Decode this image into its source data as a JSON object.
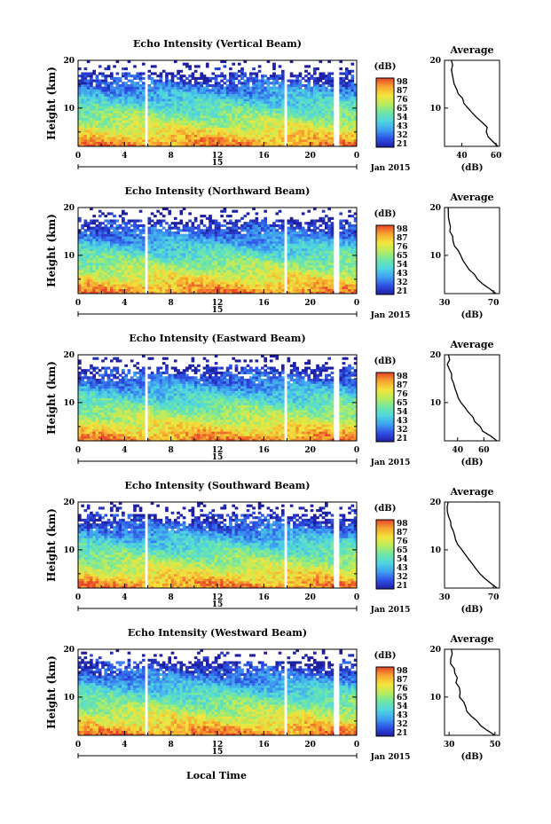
{
  "xlabel": "Local Time",
  "colorbar": {
    "unit": "(dB)",
    "ticks": [
      "98",
      "87",
      "76",
      "65",
      "54",
      "43",
      "32",
      "21"
    ],
    "colors": [
      "#1e1fa0",
      "#2f50e6",
      "#3fa0f0",
      "#4fd6e0",
      "#6ee6a6",
      "#b8ec5e",
      "#f4e43c",
      "#f6a630",
      "#e8442a"
    ]
  },
  "panels": [
    {
      "title": "Echo Intensity (Vertical Beam)",
      "ylabel": "Height (km)",
      "yticks": [
        "20",
        "10"
      ],
      "xticks": [
        "0",
        "4",
        "8",
        "12",
        "16",
        "20",
        "0"
      ],
      "date_day": "15",
      "date_label": "Jan 2015",
      "avg_title": "Average",
      "avg_xticks": [
        "40",
        "60"
      ],
      "avg_xlabel": "(dB)",
      "cb_ticks": [
        "98",
        "87",
        "76",
        "65",
        "54",
        "43",
        "32",
        "21"
      ]
    },
    {
      "title": "Echo Intensity (Northward Beam)",
      "ylabel": "Height (km)",
      "yticks": [
        "20",
        "10"
      ],
      "xticks": [
        "0",
        "4",
        "8",
        "12",
        "16",
        "20",
        "0"
      ],
      "date_day": "15",
      "date_label": "Jan 2015",
      "avg_title": "Average",
      "avg_xticks": [
        "30",
        "70"
      ],
      "avg_xlabel": "(dB)",
      "cb_ticks": [
        "98",
        "87",
        "76",
        "65",
        "54",
        "43",
        "32",
        "21"
      ]
    },
    {
      "title": "Echo Intensity (Eastward Beam)",
      "ylabel": "Height (km)",
      "yticks": [
        "20",
        "10"
      ],
      "xticks": [
        "0",
        "4",
        "8",
        "12",
        "16",
        "20",
        "0"
      ],
      "date_day": "15",
      "date_label": "Jan 2015",
      "avg_title": "Average",
      "avg_xticks": [
        "40",
        "60"
      ],
      "avg_xlabel": "(dB)",
      "cb_ticks": [
        "98",
        "87",
        "76",
        "65",
        "54",
        "43",
        "32",
        "21"
      ]
    },
    {
      "title": "Echo Intensity (Southward Beam)",
      "ylabel": "Height (km)",
      "yticks": [
        "20",
        "10"
      ],
      "xticks": [
        "0",
        "4",
        "8",
        "12",
        "16",
        "20",
        "0"
      ],
      "date_day": "15",
      "date_label": "Jan 2015",
      "avg_title": "Average",
      "avg_xticks": [
        "30",
        "70"
      ],
      "avg_xlabel": "(dB)",
      "cb_ticks": [
        "98",
        "87",
        "76",
        "65",
        "54",
        "43",
        "32",
        "21"
      ]
    },
    {
      "title": "Echo Intensity (Westward Beam)",
      "ylabel": "Height (km)",
      "yticks": [
        "20",
        "10"
      ],
      "xticks": [
        "0",
        "4",
        "8",
        "12",
        "16",
        "20",
        "0"
      ],
      "date_day": "15",
      "date_label": "Jan 2015",
      "avg_title": "Average",
      "avg_xticks": [
        "30",
        "50"
      ],
      "avg_xlabel": "(dB)",
      "cb_ticks": [
        "98",
        "87",
        "76",
        "65",
        "54",
        "43",
        "32",
        "21"
      ]
    }
  ],
  "chart_data": [
    {
      "type": "heatmap",
      "title": "Echo Intensity (Vertical Beam)",
      "xlabel": "Local Time",
      "ylabel": "Height (km)",
      "xlim": [
        0,
        24
      ],
      "ylim": [
        2,
        20
      ],
      "colorbar": {
        "label": "(dB)",
        "range": [
          21,
          98
        ]
      },
      "data_gaps_hours": [
        [
          5.7,
          5.9
        ],
        [
          17.7,
          17.9
        ],
        [
          21.9,
          22.6
        ]
      ],
      "profile": {
        "title": "Average",
        "xlabel": "(dB)",
        "xlim": [
          30,
          62
        ],
        "height_km": [
          2,
          3,
          4,
          5,
          6,
          7,
          8,
          9,
          10,
          11,
          12,
          13,
          14,
          15,
          16,
          17,
          18,
          19,
          20
        ],
        "value_db": [
          61,
          58,
          56,
          55,
          54,
          52,
          49,
          46,
          43,
          42,
          40,
          38,
          37,
          36,
          35,
          34,
          34,
          34,
          34
        ]
      }
    },
    {
      "type": "heatmap",
      "title": "Echo Intensity (Northward Beam)",
      "xlabel": "Local Time",
      "ylabel": "Height (km)",
      "xlim": [
        0,
        24
      ],
      "ylim": [
        2,
        20
      ],
      "colorbar": {
        "label": "(dB)",
        "range": [
          21,
          98
        ]
      },
      "data_gaps_hours": [
        [
          5.7,
          5.9
        ],
        [
          17.7,
          17.9
        ],
        [
          21.9,
          22.6
        ]
      ],
      "profile": {
        "title": "Average",
        "xlabel": "(dB)",
        "xlim": [
          30,
          75
        ],
        "height_km": [
          2,
          3,
          4,
          5,
          6,
          7,
          8,
          9,
          10,
          11,
          12,
          13,
          14,
          15,
          16,
          17,
          18,
          19,
          20
        ],
        "value_db": [
          72,
          68,
          62,
          58,
          54,
          51,
          48,
          45,
          43,
          41,
          39,
          37,
          36,
          35,
          34,
          34,
          33,
          33,
          33
        ]
      }
    },
    {
      "type": "heatmap",
      "title": "Echo Intensity (Eastward Beam)",
      "xlabel": "Local Time",
      "ylabel": "Height (km)",
      "xlim": [
        0,
        24
      ],
      "ylim": [
        2,
        20
      ],
      "colorbar": {
        "label": "(dB)",
        "range": [
          21,
          98
        ]
      },
      "data_gaps_hours": [
        [
          5.7,
          5.9
        ],
        [
          17.7,
          17.9
        ],
        [
          21.9,
          22.6
        ]
      ],
      "profile": {
        "title": "Average",
        "xlabel": "(dB)",
        "xlim": [
          30,
          72
        ],
        "height_km": [
          2,
          3,
          4,
          5,
          6,
          7,
          8,
          9,
          10,
          11,
          12,
          13,
          14,
          15,
          16,
          17,
          18,
          19,
          20
        ],
        "value_db": [
          70,
          66,
          60,
          57,
          54,
          51,
          48,
          45,
          43,
          41,
          40,
          38,
          37,
          36,
          35,
          34,
          33,
          33,
          33
        ]
      }
    },
    {
      "type": "heatmap",
      "title": "Echo Intensity (Southward Beam)",
      "xlabel": "Local Time",
      "ylabel": "Height (km)",
      "xlim": [
        0,
        24
      ],
      "ylim": [
        2,
        20
      ],
      "colorbar": {
        "label": "(dB)",
        "range": [
          21,
          98
        ]
      },
      "data_gaps_hours": [
        [
          5.7,
          5.9
        ],
        [
          17.7,
          17.9
        ],
        [
          21.9,
          22.6
        ]
      ],
      "profile": {
        "title": "Average",
        "xlabel": "(dB)",
        "xlim": [
          30,
          75
        ],
        "height_km": [
          2,
          3,
          4,
          5,
          6,
          7,
          8,
          9,
          10,
          11,
          12,
          13,
          14,
          15,
          16,
          17,
          18,
          19,
          20
        ],
        "value_db": [
          73,
          68,
          63,
          58,
          55,
          52,
          49,
          46,
          44,
          42,
          40,
          38,
          37,
          36,
          35,
          34,
          33,
          33,
          33
        ]
      }
    },
    {
      "type": "heatmap",
      "title": "Echo Intensity (Westward Beam)",
      "xlabel": "Local Time",
      "ylabel": "Height (km)",
      "xlim": [
        0,
        24
      ],
      "ylim": [
        2,
        20
      ],
      "colorbar": {
        "label": "(dB)",
        "range": [
          21,
          98
        ]
      },
      "data_gaps_hours": [
        [
          5.7,
          5.9
        ],
        [
          17.7,
          17.9
        ],
        [
          21.9,
          22.6
        ]
      ],
      "profile": {
        "title": "Average",
        "xlabel": "(dB)",
        "xlim": [
          28,
          52
        ],
        "height_km": [
          2,
          3,
          4,
          5,
          6,
          7,
          8,
          9,
          10,
          11,
          12,
          13,
          14,
          15,
          16,
          17,
          18,
          19,
          20
        ],
        "value_db": [
          50,
          47,
          44,
          42,
          40,
          38,
          37,
          36,
          35,
          35,
          34,
          33,
          33,
          32,
          32,
          31,
          31,
          31,
          31
        ]
      }
    }
  ]
}
